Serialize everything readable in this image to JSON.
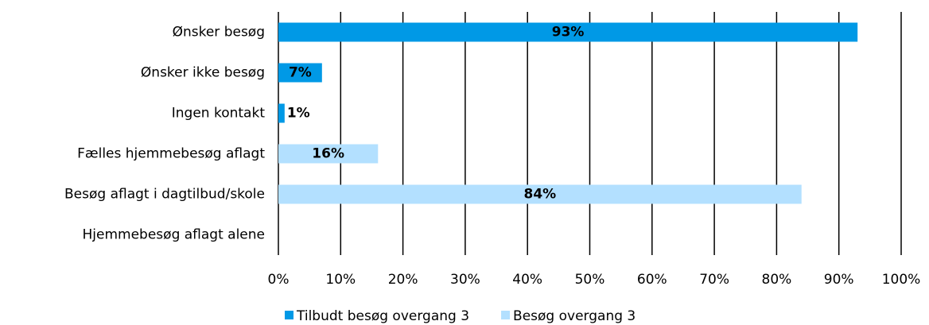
{
  "chart_data": {
    "type": "bar",
    "orientation": "horizontal",
    "categories": [
      "Ønsker besøg",
      "Ønsker ikke besøg",
      "Ingen kontakt",
      "Fælles hjemmebesøg aflagt",
      "Besøg aflagt i dagtilbud/skole",
      "Hjemmebesøg aflagt alene"
    ],
    "series": [
      {
        "name": "Tilbudt besøg overgang 3",
        "color": "#0099e6",
        "values": [
          93,
          7,
          1,
          null,
          null,
          null
        ],
        "value_labels": [
          "93%",
          "7%",
          "1%",
          null,
          null,
          null
        ]
      },
      {
        "name": "Besøg overgang 3",
        "color": "#b3e0ff",
        "values": [
          null,
          null,
          null,
          16,
          84,
          null
        ],
        "value_labels": [
          null,
          null,
          null,
          "16%",
          "84%",
          null
        ]
      }
    ],
    "xlim": [
      0,
      100
    ],
    "xticks": [
      {
        "value": 0,
        "label": "0%"
      },
      {
        "value": 10,
        "label": "10%"
      },
      {
        "value": 20,
        "label": "20%"
      },
      {
        "value": 30,
        "label": "30%"
      },
      {
        "value": 40,
        "label": "40%"
      },
      {
        "value": 50,
        "label": "50%"
      },
      {
        "value": 60,
        "label": "60%"
      },
      {
        "value": 70,
        "label": "70%"
      },
      {
        "value": 80,
        "label": "80%"
      },
      {
        "value": 90,
        "label": "90%"
      },
      {
        "value": 100,
        "label": "100%"
      }
    ],
    "grid": true,
    "legend": "bottom"
  }
}
